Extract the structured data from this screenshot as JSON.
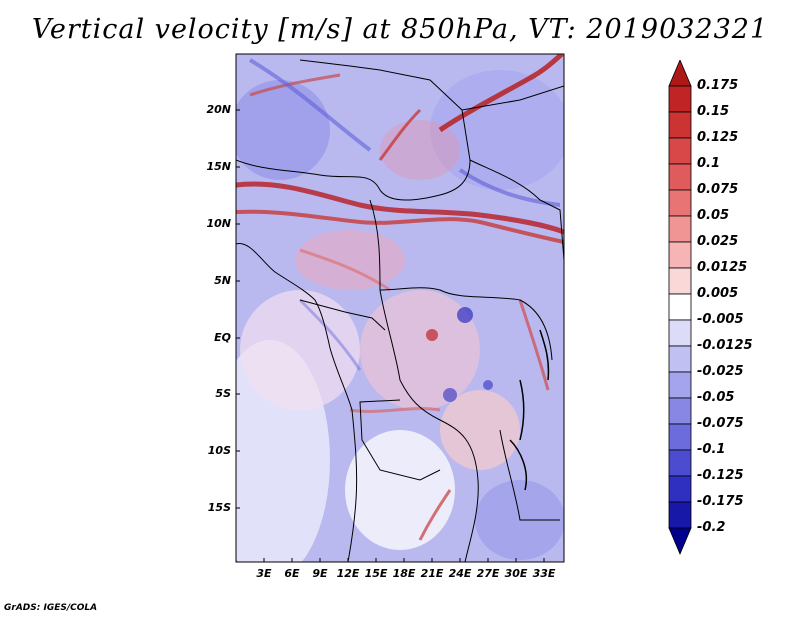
{
  "title": "Vertical velocity [m/s] at 850hPa, VT: 2019032321",
  "y_axis_labels": [
    "20N",
    "15N",
    "10N",
    "5N",
    "EQ",
    "5S",
    "10S",
    "15S"
  ],
  "x_axis_labels": [
    "3E",
    "6E",
    "9E",
    "12E",
    "15E",
    "18E",
    "21E",
    "24E",
    "27E",
    "30E",
    "33E"
  ],
  "colorbar": {
    "labels": [
      "0.175",
      "0.15",
      "0.125",
      "0.1",
      "0.075",
      "0.05",
      "0.025",
      "0.0125",
      "0.005",
      "-0.005",
      "-0.0125",
      "-0.025",
      "-0.05",
      "-0.075",
      "-0.1",
      "-0.125",
      "-0.175",
      "-0.2"
    ],
    "colors": [
      "#b01818",
      "#c02424",
      "#cc3434",
      "#d84848",
      "#e05c5c",
      "#e87474",
      "#f09494",
      "#f6b4b4",
      "#fad8d8",
      "#ffffff",
      "#dcdcf8",
      "#c0c0f2",
      "#a4a4ec",
      "#8888e4",
      "#6c6cdc",
      "#4c4cd0",
      "#3030c0",
      "#1818a8",
      "#00008c"
    ]
  },
  "footer": "GrADS: IGES/COLA"
}
